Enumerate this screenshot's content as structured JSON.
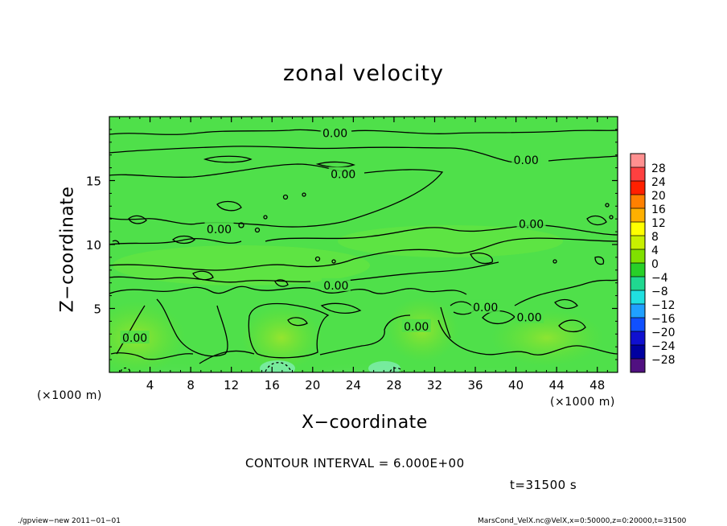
{
  "chart_data": {
    "type": "heatmap",
    "title": "zonal velocity",
    "xlabel": "X−coordinate",
    "ylabel": "Z−coordinate",
    "x_unit_left": "(×1000 m)",
    "x_unit_right": "(×1000 m)",
    "xlim": [
      0,
      50
    ],
    "ylim": [
      0,
      20
    ],
    "x_ticks": [
      4,
      8,
      12,
      16,
      20,
      24,
      28,
      32,
      36,
      40,
      44,
      48
    ],
    "y_ticks": [
      5,
      10,
      15
    ],
    "contour_interval": "CONTOUR INTERVAL = 6.000E+00",
    "contour_labels": [
      {
        "text": "0.00",
        "x": 22.2,
        "z": 18.7
      },
      {
        "text": "0.00",
        "x": 23.0,
        "z": 15.5
      },
      {
        "text": "0.00",
        "x": 41.0,
        "z": 16.6
      },
      {
        "text": "0.00",
        "x": 41.5,
        "z": 11.6
      },
      {
        "text": "0.00",
        "x": 10.8,
        "z": 11.2
      },
      {
        "text": "0.00",
        "x": 22.3,
        "z": 6.8
      },
      {
        "text": "0.00",
        "x": 37.0,
        "z": 5.1
      },
      {
        "text": "0.00",
        "x": 41.3,
        "z": 4.3
      },
      {
        "text": "0.00",
        "x": 2.5,
        "z": 2.7
      },
      {
        "text": "0.00",
        "x": 30.2,
        "z": 3.6
      }
    ],
    "colorbar": {
      "levels": [
        "28",
        "24",
        "20",
        "16",
        "12",
        "8",
        "4",
        "0",
        "−4",
        "−8",
        "−12",
        "−16",
        "−20",
        "−24",
        "−28"
      ],
      "colors": [
        "#ff9090",
        "#ff4040",
        "#ff2000",
        "#ff8000",
        "#ffb000",
        "#ffff00",
        "#c8f000",
        "#80e000",
        "#28d028",
        "#20d890",
        "#20e0e0",
        "#20a0ff",
        "#1050ff",
        "#1010d0",
        "#0000a0",
        "#501080"
      ]
    },
    "time": "t=31500 s"
  },
  "footer": {
    "left": "./gpview−new   2011−01−01",
    "right": "MarsCond_VelX.nc@VelX,x=0:50000,z=0:20000,t=31500"
  }
}
